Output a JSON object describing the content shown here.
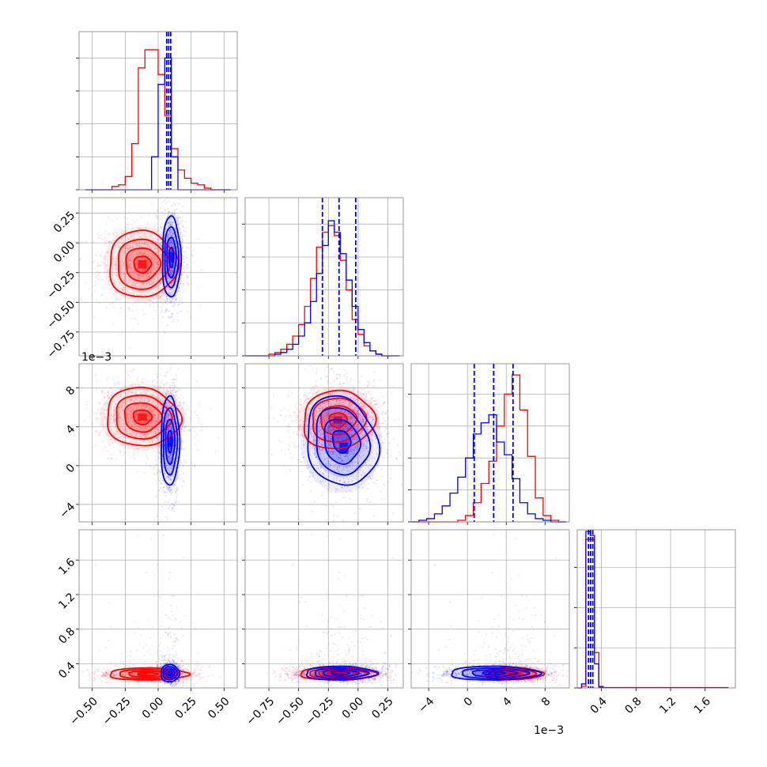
{
  "chart_data": {
    "type": "corner",
    "colors": {
      "series_a": "#ff0000",
      "series_b": "#0000ff",
      "grid": "#b0b0b0",
      "axes": "#808080"
    },
    "series": [
      {
        "color": "#ff0000"
      },
      {
        "color": "#0000ff"
      }
    ],
    "params": [
      {
        "lim": [
          -0.6,
          0.6
        ],
        "ticks": [
          "−0.50",
          "−0.25",
          "0.00",
          "0.25",
          "0.50"
        ],
        "tick_values": [
          -0.5,
          -0.25,
          0.0,
          0.25,
          0.5
        ]
      },
      {
        "lim": [
          -0.95,
          0.38
        ],
        "ticks": [
          "−0.75",
          "−0.50",
          "−0.25",
          "0.00",
          "0.25"
        ],
        "tick_values": [
          -0.75,
          -0.5,
          -0.25,
          0.0,
          0.25
        ]
      },
      {
        "lim": [
          -5.8,
          10.5
        ],
        "ticks": [
          "−4",
          "0",
          "4",
          "8"
        ],
        "tick_values": [
          -4,
          0,
          4,
          8
        ],
        "offset_text": "1e−3"
      },
      {
        "lim": [
          0.12,
          1.95
        ],
        "ticks": [
          "0.4",
          "0.8",
          "1.2",
          "1.6"
        ],
        "tick_values": [
          0.4,
          0.8,
          1.2,
          1.6
        ]
      }
    ],
    "histograms": [
      {
        "param": 0,
        "edges": [
          -0.55,
          -0.5,
          -0.45,
          -0.4,
          -0.35,
          -0.3,
          -0.25,
          -0.2,
          -0.15,
          -0.1,
          -0.05,
          0.0,
          0.05,
          0.1,
          0.15,
          0.2,
          0.25,
          0.3,
          0.35,
          0.4,
          0.45,
          0.5,
          0.55
        ],
        "counts": {
          "red": [
            0,
            0,
            0,
            0,
            2,
            3,
            8,
            28,
            74,
            85,
            85,
            70,
            45,
            25,
            12,
            7,
            4,
            3,
            1,
            0,
            0,
            0
          ],
          "blue": [
            0,
            0,
            0,
            0,
            0,
            0,
            0,
            0,
            0,
            0,
            20,
            64,
            80,
            20,
            0,
            0,
            0,
            0,
            0,
            0,
            0,
            0
          ]
        },
        "ymax": 96,
        "yticks": [
          0,
          20,
          40,
          60,
          80
        ],
        "quantiles": [
          0.065,
          0.08,
          0.095
        ]
      },
      {
        "param": 1,
        "edges": [
          -0.95,
          -0.9,
          -0.85,
          -0.8,
          -0.75,
          -0.7,
          -0.65,
          -0.6,
          -0.55,
          -0.5,
          -0.45,
          -0.4,
          -0.35,
          -0.3,
          -0.25,
          -0.2,
          -0.15,
          -0.1,
          -0.05,
          0.0,
          0.05,
          0.1,
          0.15,
          0.2,
          0.25,
          0.3,
          0.35
        ],
        "counts": {
          "red": [
            0,
            0,
            0,
            0,
            1,
            2,
            4,
            7,
            12,
            19,
            30,
            47,
            66,
            75,
            79,
            73,
            58,
            40,
            22,
            13,
            6,
            3,
            1,
            0,
            0,
            0
          ],
          "blue": [
            0,
            0,
            0,
            0,
            0,
            1,
            2,
            4,
            7,
            12,
            20,
            33,
            50,
            67,
            82,
            75,
            62,
            46,
            30,
            16,
            8,
            3,
            1,
            0,
            0,
            0
          ]
        },
        "ymax": 96,
        "yticks": [
          0,
          20,
          40,
          60,
          80
        ],
        "quantiles": [
          -0.3,
          -0.16,
          -0.02
        ]
      },
      {
        "param": 2,
        "edges": [
          -5.8,
          -5.0,
          -4.2,
          -3.4,
          -2.6,
          -1.8,
          -1.0,
          -0.2,
          0.6,
          1.4,
          2.2,
          3.0,
          3.8,
          4.6,
          5.4,
          6.2,
          7.0,
          7.8,
          8.6,
          9.4,
          10.2
        ],
        "counts": {
          "red": [
            0,
            0,
            0,
            0,
            0,
            0,
            1,
            4,
            12,
            24,
            38,
            60,
            80,
            92,
            70,
            41,
            15,
            4,
            1,
            0
          ],
          "blue": [
            0,
            1,
            2,
            5,
            10,
            18,
            28,
            40,
            55,
            62,
            67,
            50,
            42,
            27,
            12,
            5,
            2,
            1,
            0,
            0
          ]
        },
        "ymax": 99,
        "yticks": [
          0,
          20,
          40,
          60,
          80
        ],
        "quantiles": [
          0.7,
          2.7,
          4.7
        ]
      },
      {
        "param": 3,
        "edges": [
          0.12,
          0.17,
          0.22,
          0.27,
          0.32,
          0.37,
          0.42,
          0.47,
          0.52,
          0.57,
          0.62,
          0.67,
          0.72,
          0.77,
          0.82,
          0.87,
          0.92,
          0.97,
          1.02,
          1.07,
          1.12,
          1.17,
          1.22,
          1.27,
          1.32,
          1.37,
          1.42,
          1.47,
          1.52,
          1.57,
          1.62,
          1.67,
          1.72,
          1.77,
          1.82,
          1.87,
          1.92
        ],
        "counts": {
          "red": [
            0,
            2,
            185,
            185,
            44,
            2,
            0.5,
            0.5,
            0.5,
            0.5,
            0.5,
            0.5,
            0.5,
            0.5,
            0.5,
            0.5,
            0.5,
            0.5,
            0.5,
            0.5,
            0.5,
            0.5,
            0.5,
            0.5,
            0.5,
            0.5,
            0.5,
            0.5,
            0.5,
            0.5,
            0.5,
            0.5,
            0.5,
            0.5,
            0.5
          ],
          "blue": [
            0,
            5,
            195,
            190,
            30,
            1,
            0.3,
            0.3,
            0.3,
            0.3,
            0.3,
            0.3,
            0.3,
            0.3,
            0.3,
            0.3,
            0.3,
            0.3,
            0.3,
            0.3,
            0.3,
            0.3,
            0.3,
            0.3,
            0.3,
            0.3,
            0.3,
            0.3,
            0.3,
            0.3,
            0.3,
            0.3,
            0.3,
            0.3,
            0.3
          ]
        },
        "ymax": 197,
        "yticks": [
          0,
          50,
          100,
          150
        ],
        "quantiles": [
          0.25,
          0.275,
          0.3
        ]
      }
    ],
    "pairs": [
      {
        "x_param": 0,
        "y_param": 1,
        "red": {
          "cx": -0.12,
          "cy": -0.18,
          "sx": 0.13,
          "sy": 0.14,
          "rho": 0.0,
          "peak": [
            -0.12,
            -0.18
          ]
        },
        "blue": {
          "cx": 0.1,
          "cy": -0.12,
          "sx": 0.035,
          "sy": 0.17,
          "rho": 0.0,
          "peak": [
            0.1,
            -0.12
          ]
        }
      },
      {
        "x_param": 0,
        "y_param": 2,
        "red": {
          "cx": -0.12,
          "cy": 5.0,
          "sx": 0.14,
          "sy": 1.5,
          "rho": -0.05,
          "peak": [
            -0.12,
            5.0
          ]
        },
        "blue": {
          "cx": 0.09,
          "cy": 2.5,
          "sx": 0.035,
          "sy": 2.3,
          "rho": 0.0,
          "peak": [
            0.09,
            2.5
          ]
        }
      },
      {
        "x_param": 1,
        "y_param": 2,
        "red": {
          "cx": -0.17,
          "cy": 4.7,
          "sx": 0.15,
          "sy": 1.5,
          "rho": 0.05,
          "peak": [
            -0.17,
            4.7
          ]
        },
        "blue": {
          "cx": -0.14,
          "cy": 2.5,
          "sx": 0.15,
          "sy": 2.3,
          "rho": -0.15,
          "peak": [
            -0.12,
            1.8
          ]
        }
      },
      {
        "x_param": 0,
        "y_param": 3,
        "red": {
          "cx": -0.08,
          "cy": 0.28,
          "sx": 0.15,
          "sy": 0.035,
          "rho": 0.0,
          "peak": [
            -0.12,
            0.28
          ]
        },
        "blue": {
          "cx": 0.09,
          "cy": 0.29,
          "sx": 0.035,
          "sy": 0.05,
          "rho": 0.0,
          "peak": [
            0.09,
            0.29
          ]
        }
      },
      {
        "x_param": 1,
        "y_param": 3,
        "red": {
          "cx": -0.18,
          "cy": 0.285,
          "sx": 0.16,
          "sy": 0.035,
          "rho": 0.0,
          "peak": [
            -0.17,
            0.28
          ]
        },
        "blue": {
          "cx": -0.15,
          "cy": 0.29,
          "sx": 0.15,
          "sy": 0.04,
          "rho": 0.0,
          "peak": [
            -0.15,
            0.29
          ]
        }
      },
      {
        "x_param": 2,
        "y_param": 3,
        "red": {
          "cx": 4.7,
          "cy": 0.285,
          "sx": 1.5,
          "sy": 0.035,
          "rho": 0.0,
          "peak": [
            4.7,
            0.28
          ]
        },
        "blue": {
          "cx": 2.7,
          "cy": 0.29,
          "sx": 2.3,
          "sy": 0.04,
          "rho": 0.0,
          "peak": [
            2.7,
            0.29
          ]
        }
      }
    ]
  }
}
